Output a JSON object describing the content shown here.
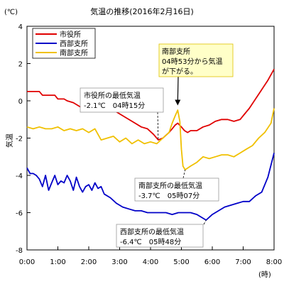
{
  "chart_data": {
    "type": "line",
    "title": "気温の推移(2016年2月16日)",
    "unit_label": "(℃)",
    "ylabel": "気温",
    "xlabel": "(時)",
    "ylim": [
      -8,
      4
    ],
    "xlim": [
      0,
      8
    ],
    "yticks": [
      4,
      2,
      0,
      -2,
      -4,
      -6,
      -8
    ],
    "xtick_labels": [
      "0:00",
      "1:00",
      "2:00",
      "3:00",
      "4:00",
      "5:00",
      "6:00",
      "7:00",
      "8:00"
    ],
    "grid": false,
    "legend_position": "top-left",
    "series": [
      {
        "name": "市役所",
        "color": "#e00000",
        "x": [
          0,
          0.4,
          0.5,
          0.9,
          1.0,
          1.2,
          1.3,
          1.5,
          1.7,
          1.8,
          2.0,
          2.2,
          2.4,
          2.6,
          2.8,
          3.0,
          3.2,
          3.5,
          3.7,
          3.9,
          4.1,
          4.25,
          4.4,
          4.6,
          4.7,
          4.8,
          4.88,
          5.0,
          5.1,
          5.2,
          5.3,
          5.5,
          5.7,
          5.9,
          6.1,
          6.3,
          6.5,
          6.7,
          6.9,
          7.0,
          7.2,
          7.4,
          7.6,
          7.8,
          8.0
        ],
        "y": [
          0.5,
          0.5,
          0.3,
          0.3,
          0.1,
          0.1,
          0.0,
          -0.1,
          -0.3,
          -0.4,
          -0.4,
          -0.4,
          -0.5,
          -0.5,
          -0.5,
          -0.7,
          -0.9,
          -1.2,
          -1.4,
          -1.5,
          -1.8,
          -2.1,
          -2.0,
          -1.7,
          -1.5,
          -1.3,
          -1.2,
          -1.4,
          -1.6,
          -1.7,
          -1.6,
          -1.6,
          -1.4,
          -1.3,
          -1.1,
          -1.0,
          -1.0,
          -1.1,
          -1.0,
          -0.8,
          -0.4,
          0.1,
          0.6,
          1.1,
          1.7
        ]
      },
      {
        "name": "西部支所",
        "color": "#0000c8",
        "x": [
          0,
          0.1,
          0.2,
          0.3,
          0.4,
          0.5,
          0.6,
          0.7,
          0.8,
          0.9,
          1.0,
          1.1,
          1.2,
          1.3,
          1.4,
          1.5,
          1.6,
          1.7,
          1.8,
          1.9,
          2.0,
          2.1,
          2.2,
          2.3,
          2.4,
          2.5,
          2.7,
          2.9,
          3.1,
          3.3,
          3.5,
          3.7,
          3.9,
          4.1,
          4.3,
          4.5,
          4.7,
          4.9,
          5.1,
          5.3,
          5.5,
          5.7,
          5.8,
          6.0,
          6.2,
          6.4,
          6.6,
          6.8,
          7.0,
          7.2,
          7.4,
          7.6,
          7.8,
          8.0
        ],
        "y": [
          -3.6,
          -3.9,
          -3.9,
          -4.0,
          -4.2,
          -4.6,
          -4.0,
          -4.8,
          -4.4,
          -4.0,
          -4.5,
          -4.3,
          -4.4,
          -4.0,
          -4.3,
          -4.8,
          -4.1,
          -4.6,
          -4.9,
          -4.6,
          -4.5,
          -4.8,
          -4.4,
          -4.7,
          -4.6,
          -5.0,
          -5.2,
          -5.5,
          -5.7,
          -5.8,
          -5.9,
          -5.9,
          -6.0,
          -6.0,
          -6.0,
          -6.0,
          -6.1,
          -6.0,
          -6.0,
          -6.0,
          -6.1,
          -6.3,
          -6.4,
          -6.1,
          -5.9,
          -5.7,
          -5.6,
          -5.5,
          -5.4,
          -5.4,
          -5.1,
          -4.9,
          -4.1,
          -2.8
        ]
      },
      {
        "name": "南部支所",
        "color": "#f0c000",
        "x": [
          0,
          0.2,
          0.4,
          0.6,
          0.8,
          1.0,
          1.2,
          1.4,
          1.6,
          1.8,
          2.0,
          2.2,
          2.4,
          2.6,
          2.8,
          3.0,
          3.2,
          3.4,
          3.6,
          3.8,
          4.0,
          4.2,
          4.4,
          4.6,
          4.7,
          4.8,
          4.88,
          4.95,
          5.0,
          5.05,
          5.12,
          5.3,
          5.5,
          5.7,
          5.9,
          6.1,
          6.3,
          6.5,
          6.7,
          6.9,
          7.1,
          7.3,
          7.5,
          7.7,
          7.9,
          8.0
        ],
        "y": [
          -1.4,
          -1.5,
          -1.4,
          -1.5,
          -1.5,
          -1.4,
          -1.6,
          -1.5,
          -1.6,
          -1.5,
          -1.7,
          -1.5,
          -2.1,
          -2.0,
          -1.9,
          -2.2,
          -2.0,
          -2.3,
          -2.1,
          -2.3,
          -2.2,
          -2.3,
          -2.0,
          -1.7,
          -1.2,
          -0.8,
          -0.5,
          -1.1,
          -2.6,
          -3.5,
          -3.7,
          -3.5,
          -3.3,
          -3.0,
          -3.1,
          -3.0,
          -2.9,
          -2.9,
          -3.0,
          -2.8,
          -2.6,
          -2.4,
          -2.0,
          -1.7,
          -1.2,
          -0.4
        ]
      }
    ],
    "annotations": [
      {
        "lines": [
          "市役所の最低気温",
          "-2.1℃　04時15分"
        ],
        "x": 4.25,
        "y": -2.1
      },
      {
        "lines": [
          "南部支所",
          "04時53分から気温",
          "が下がる。"
        ],
        "x": 4.88,
        "y": -0.4,
        "highlight": true
      },
      {
        "lines": [
          "南部支所の最低気温",
          "-3.7℃　05時07分"
        ],
        "x": 5.12,
        "y": -3.7
      },
      {
        "lines": [
          "西部支所の最低気温",
          "-6.4℃　05時48分"
        ],
        "x": 5.8,
        "y": -6.4
      }
    ]
  }
}
